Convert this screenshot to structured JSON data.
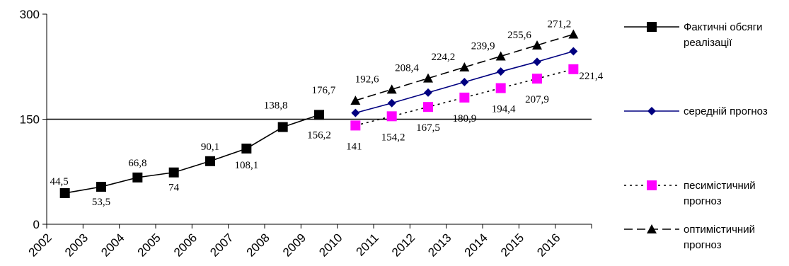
{
  "chart_data": {
    "type": "line",
    "categories": [
      "2002",
      "2003",
      "2004",
      "2005",
      "2006",
      "2007",
      "2008",
      "2009",
      "2010",
      "2011",
      "2012",
      "2013",
      "2014",
      "2015",
      "2016"
    ],
    "ylim": [
      0,
      300
    ],
    "y_ticks": [
      "0",
      "150",
      "300"
    ],
    "grid": false,
    "reference_line": 150,
    "legend_position": "right",
    "series": [
      {
        "name_lines": [
          "Фактичні обсяги",
          "реалізації"
        ],
        "key": "actual",
        "color": "#000000",
        "marker": "square",
        "dash": "solid",
        "x": [
          "2002",
          "2003",
          "2004",
          "2005",
          "2006",
          "2007",
          "2008",
          "2009"
        ],
        "values": [
          44.5,
          53.5,
          66.8,
          74,
          90.1,
          108.1,
          138.8,
          156.2
        ],
        "labels": [
          "44,5",
          "53,5",
          "66,8",
          "74",
          "90,1",
          "108,1",
          "138,8",
          "156,2"
        ]
      },
      {
        "name_lines": [
          "середній прогноз"
        ],
        "key": "average",
        "color": "#000080",
        "marker": "diamond",
        "dash": "solid",
        "x": [
          "2010",
          "2011",
          "2012",
          "2013",
          "2014",
          "2015",
          "2016"
        ],
        "values": [
          159,
          173,
          188,
          203,
          218,
          232,
          247
        ],
        "labels": []
      },
      {
        "name_lines": [
          "песимістичний",
          "прогноз"
        ],
        "key": "pessimistic",
        "color": "#ff00ff",
        "marker": "square",
        "dash": "dotted",
        "x": [
          "2010",
          "2011",
          "2012",
          "2013",
          "2014",
          "2015",
          "2016"
        ],
        "values": [
          141,
          154.2,
          167.5,
          180.9,
          194.4,
          207.9,
          221.4
        ],
        "labels": [
          "141",
          "154,2",
          "167,5",
          "180,9",
          "194,4",
          "207,9",
          "221,4"
        ]
      },
      {
        "name_lines": [
          "оптимістичний",
          "прогноз"
        ],
        "key": "optimistic",
        "color": "#000000",
        "marker": "triangle",
        "dash": "dashed",
        "x": [
          "2010",
          "2011",
          "2012",
          "2013",
          "2014",
          "2015",
          "2016"
        ],
        "values": [
          176.7,
          192.6,
          208.4,
          224.2,
          239.9,
          255.6,
          271.2
        ],
        "labels": [
          "176,7",
          "192,6",
          "208,4",
          "224,2",
          "239,9",
          "255,6",
          "271,2"
        ]
      }
    ]
  }
}
